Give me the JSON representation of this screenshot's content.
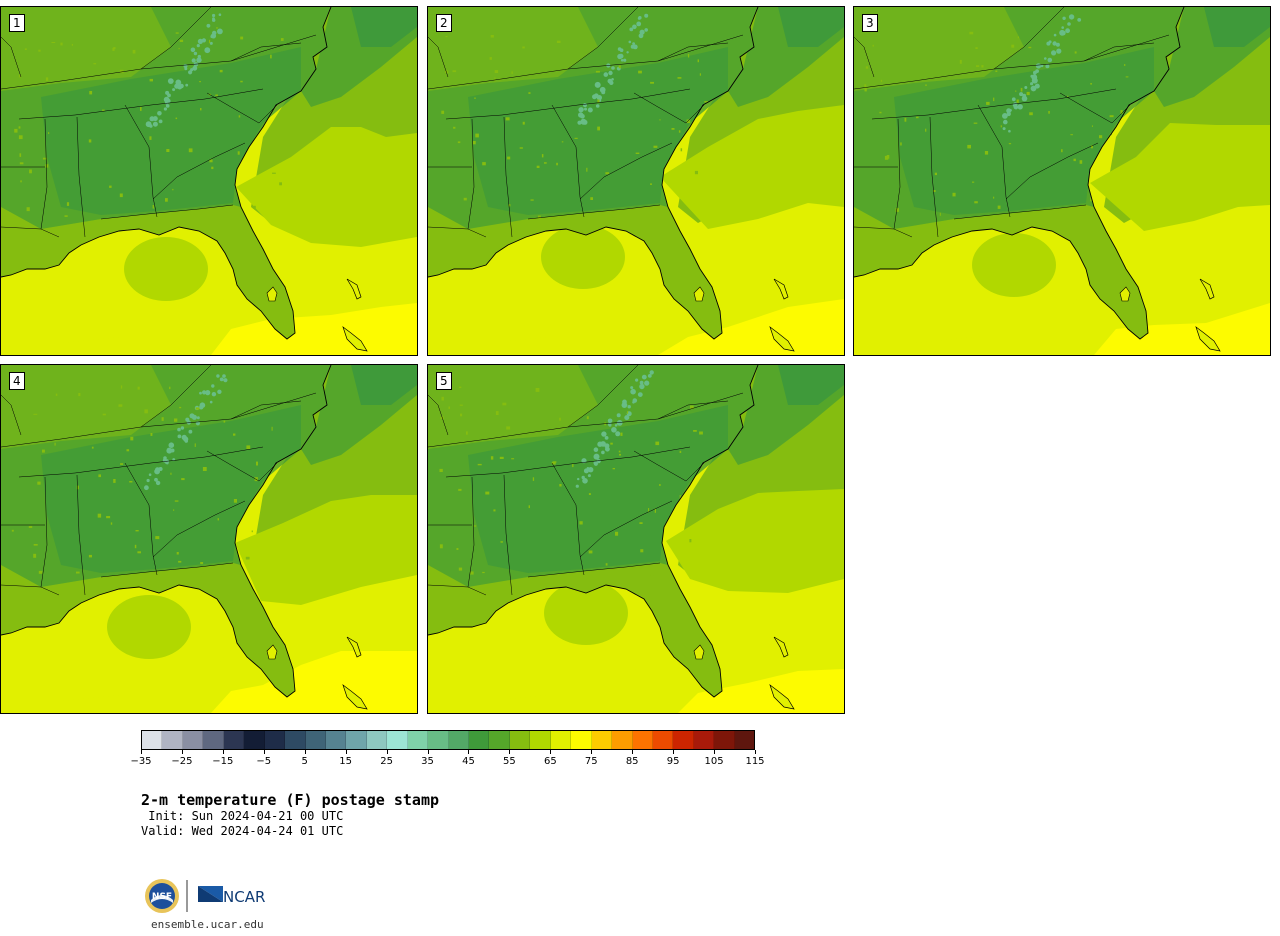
{
  "panels": [
    {
      "label": "1",
      "variant": 0
    },
    {
      "label": "2",
      "variant": 1
    },
    {
      "label": "3",
      "variant": 2
    },
    {
      "label": "4",
      "variant": 3
    },
    {
      "label": "5",
      "variant": 4
    }
  ],
  "colorbar": {
    "colors": [
      "#dde1e8",
      "#b0b4c3",
      "#8a8fa3",
      "#5f6880",
      "#2c3652",
      "#131d35",
      "#1e2c48",
      "#2e4a63",
      "#3f6477",
      "#568391",
      "#6fa5aa",
      "#8ec8c0",
      "#9ce5d5",
      "#7fd1a9",
      "#68bd86",
      "#53a867",
      "#3f9a3a",
      "#55a62a",
      "#85bd10",
      "#b1d800",
      "#e1f000",
      "#fdfb00",
      "#fdcb00",
      "#fd9c00",
      "#fd7300",
      "#ec4b00",
      "#cc2500",
      "#a81a0a",
      "#7e1609",
      "#5e160e"
    ],
    "ticks": [
      "−35",
      "−25",
      "−15",
      "−5",
      "5",
      "15",
      "25",
      "35",
      "45",
      "55",
      "65",
      "75",
      "85",
      "95",
      "105",
      "115"
    ]
  },
  "title": "2-m temperature (F) postage stamp",
  "init": " Init: Sun 2024-04-21 00 UTC",
  "valid": "Valid: Wed 2024-04-24 01 UTC",
  "logo": {
    "nsf": "NSF",
    "ncar": "NCAR"
  },
  "site": "ensemble.ucar.edu",
  "colors": {
    "ocean_warm": "#e1f000",
    "ocean_hot": "#fdfb00",
    "ocean_mid": "#b1d800",
    "land": "#55a62a",
    "land_dark": "#3f9a3a",
    "land_light": "#85bd10",
    "mountain": "#68bd86"
  }
}
